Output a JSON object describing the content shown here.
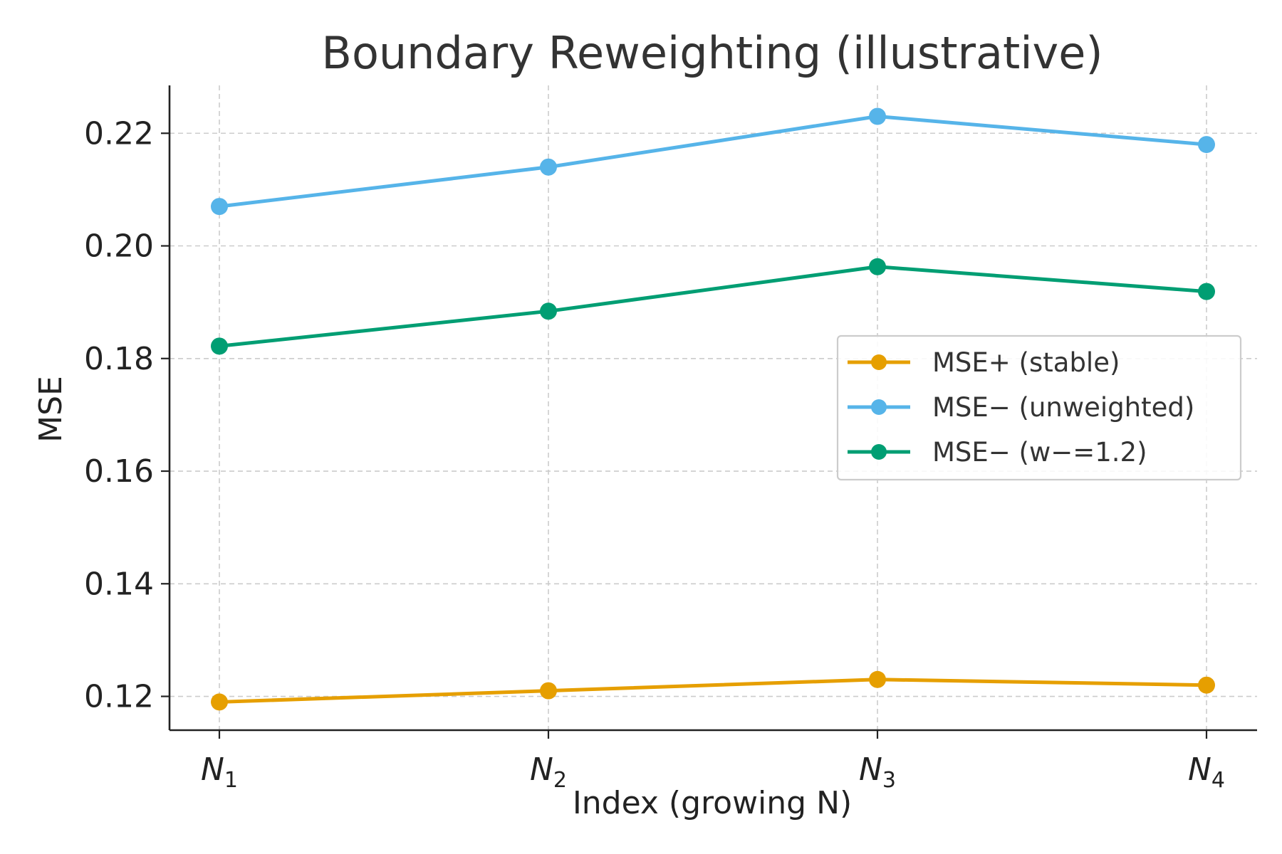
{
  "chart_data": {
    "type": "line",
    "title": "Boundary Reweighting (illustrative)",
    "xlabel": "Index (growing N)",
    "ylabel": "MSE",
    "categories": [
      {
        "main": "N",
        "sub": "1"
      },
      {
        "main": "N",
        "sub": "2"
      },
      {
        "main": "N",
        "sub": "3"
      },
      {
        "main": "N",
        "sub": "4"
      }
    ],
    "ylim": [
      0.114,
      0.2285
    ],
    "yticks": [
      0.12,
      0.14,
      0.16,
      0.18,
      0.2,
      0.22
    ],
    "ytick_labels": [
      "0.12",
      "0.14",
      "0.16",
      "0.18",
      "0.20",
      "0.22"
    ],
    "grid": true,
    "legend_position": "center-right",
    "series": [
      {
        "name": "MSE+ (stable)",
        "color": "#E69F00",
        "values": [
          0.119,
          0.121,
          0.123,
          0.122
        ]
      },
      {
        "name": "MSE− (unweighted)",
        "color": "#56B4E9",
        "values": [
          0.207,
          0.214,
          0.223,
          0.218
        ]
      },
      {
        "name": "MSE− (w−=1.2)",
        "color": "#009E73",
        "values": [
          0.1822,
          0.1884,
          0.1963,
          0.1919
        ]
      }
    ]
  }
}
